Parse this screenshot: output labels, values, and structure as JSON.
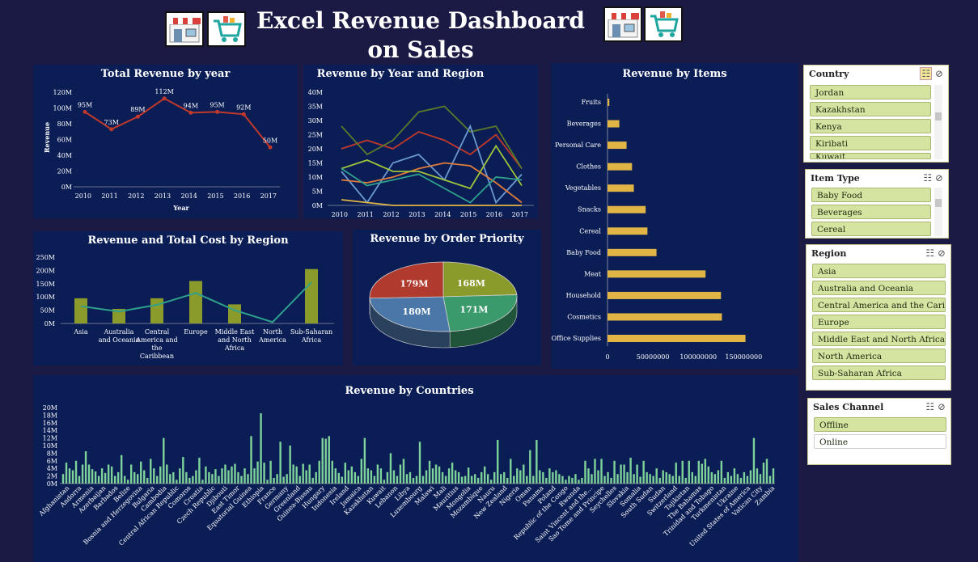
{
  "header": {
    "title": "Excel Revenue Dashboard on Sales"
  },
  "colors": {
    "background": "#1b1a45",
    "panel": "#0b1d55",
    "line_red": "#c0392b",
    "bar_olive": "#8a9a2b",
    "bar_gold": "#e0b545",
    "bar_green": "#7ed39a",
    "slicer_item": "#d5e4a0"
  },
  "icons": [
    "shop-icon",
    "cart-icon",
    "multi-select-icon",
    "clear-filter-icon"
  ],
  "charts": {
    "total_revenue_year": {
      "title": "Total Revenue by year",
      "ylabel": "Revenue",
      "xlabel": "Year"
    },
    "year_region": {
      "title": "Revenue by Year and Region"
    },
    "region_cost": {
      "title": "Revenue and Total Cost by Region"
    },
    "order_priority": {
      "title": "Revenue by Order Priority"
    },
    "items": {
      "title": "Revenue by Items"
    },
    "countries": {
      "title": "Revenue by Countries"
    }
  },
  "chart_data": [
    {
      "id": "total_revenue_year",
      "type": "line",
      "title": "Total Revenue by year",
      "xlabel": "Year",
      "ylabel": "Revenue",
      "categories": [
        "2010",
        "2011",
        "2012",
        "2013",
        "2014",
        "2015",
        "2016",
        "2017"
      ],
      "values": [
        95,
        73,
        89,
        112,
        94,
        95,
        92,
        50
      ],
      "data_labels": [
        "95M",
        "73M",
        "89M",
        "112M",
        "94M",
        "95M",
        "92M",
        "50M"
      ],
      "y_ticks": [
        "0M",
        "20M",
        "40M",
        "60M",
        "80M",
        "100M",
        "120M"
      ],
      "ylim": [
        0,
        120
      ]
    },
    {
      "id": "year_region",
      "type": "line",
      "title": "Revenue by Year and Region",
      "categories": [
        "2010",
        "2011",
        "2012",
        "2013",
        "2014",
        "2015",
        "2016",
        "2017"
      ],
      "y_ticks": [
        "0M",
        "5M",
        "10M",
        "15M",
        "20M",
        "25M",
        "30M",
        "35M",
        "40M"
      ],
      "ylim": [
        0,
        40
      ],
      "series": [
        {
          "color": "#c0392b",
          "values": [
            20,
            23,
            20,
            26,
            23,
            18,
            25,
            13
          ]
        },
        {
          "color": "#5a7a2a",
          "values": [
            28,
            18,
            23,
            33,
            35,
            26,
            28,
            13
          ]
        },
        {
          "color": "#6a9ad0",
          "values": [
            12,
            1,
            15,
            18,
            9,
            28,
            1,
            11
          ]
        },
        {
          "color": "#e07b39",
          "values": [
            9,
            8,
            10,
            13,
            15,
            14,
            8,
            1
          ]
        },
        {
          "color": "#9dc33b",
          "values": [
            13,
            16,
            12,
            12,
            9,
            6,
            21,
            7
          ]
        },
        {
          "color": "#2fa08c",
          "values": [
            13,
            7,
            9,
            11,
            6,
            1,
            10,
            9
          ]
        },
        {
          "color": "#e0b545",
          "values": [
            2,
            1,
            0,
            0,
            0,
            0,
            0,
            0
          ]
        }
      ]
    },
    {
      "id": "region_cost",
      "type": "bar",
      "title": "Revenue and Total Cost by Region",
      "categories": [
        "Asia",
        "Australia and Oceania",
        "Central America and the Caribbean",
        "Europe",
        "Middle East and North Africa",
        "North America",
        "Sub-Saharan Africa"
      ],
      "y_ticks": [
        "0M",
        "50M",
        "100M",
        "150M",
        "200M",
        "250M"
      ],
      "ylim": [
        0,
        250
      ],
      "series": [
        {
          "values": [
            95,
            55,
            95,
            160,
            72,
            0,
            205
          ],
          "color": "#8a9a2b"
        },
        {
          "values": [
            65,
            45,
            70,
            115,
            50,
            5,
            155
          ],
          "color": "#2fa08c"
        }
      ]
    },
    {
      "id": "order_priority",
      "type": "pie",
      "title": "Revenue by Order Priority",
      "values": [
        168,
        171,
        180,
        179
      ],
      "labels": [
        "168M",
        "171M",
        "180M",
        "179M"
      ],
      "colors": [
        "#8a9a2b",
        "#3a9a6b",
        "#4a76a8",
        "#b03a2e"
      ]
    },
    {
      "id": "items",
      "type": "bar",
      "title": "Revenue by Items",
      "categories": [
        "Fruits",
        "Beverages",
        "Personal Care",
        "Clothes",
        "Vegetables",
        "Snacks",
        "Cereal",
        "Baby Food",
        "Meat",
        "Household",
        "Cosmetics",
        "Office Supplies"
      ],
      "values": [
        2000000,
        13000000,
        21000000,
        27000000,
        29000000,
        42000000,
        44000000,
        54000000,
        108000000,
        125000000,
        126000000,
        152000000
      ],
      "x_ticks": [
        "0",
        "50000000",
        "100000000",
        "150000000"
      ],
      "xlim": [
        0,
        180000000
      ]
    },
    {
      "id": "countries",
      "type": "bar",
      "title": "Revenue by Countries",
      "y_ticks": [
        "0M",
        "2M",
        "4M",
        "6M",
        "8M",
        "10M",
        "12M",
        "14M",
        "16M",
        "18M",
        "20M"
      ],
      "ylim": [
        0,
        20
      ],
      "label_names": [
        "Afghanistan",
        "Andorra",
        "Armenia",
        "Azerbaijan",
        "Barbados",
        "Belize",
        "Bosnia and Herzegovina",
        "Bulgaria",
        "Cambodia",
        "Central African Republic",
        "Comoros",
        "Croatia",
        "Czech Republic",
        "Djibouti",
        "East Timor",
        "Equatorial Guinea",
        "Ethiopia",
        "France",
        "Germany",
        "Greenland",
        "Guinea-Bissau",
        "Hungary",
        "Indonesia",
        "Ireland",
        "Jamaica",
        "Kazakhstan",
        "Kuwait",
        "Lebanon",
        "Libya",
        "Luxembourg",
        "Malawi",
        "Mali",
        "Mauritius",
        "Mongolia",
        "Mozambique",
        "Nauru",
        "New Zealand",
        "Nigeria",
        "Oman",
        "Panama",
        "Poland",
        "Republic of the Congo",
        "Rwanda",
        "Saint Vincent and the...",
        "Sao Tome and Principe",
        "Seychelles",
        "Slovakia",
        "Somalia",
        "South Sudan",
        "Sudan",
        "Switzerland",
        "Tajikistan",
        "The Bahamas",
        "Trinidad and Tobago",
        "Turkmenistan",
        "Ukraine",
        "United States of America",
        "Vatican City",
        "Zambia"
      ],
      "values": [
        2.5,
        5.5,
        4,
        3.5,
        6,
        2,
        5,
        8.5,
        5,
        3.8,
        3.2,
        2,
        4,
        2.8,
        5,
        4.5,
        2,
        3,
        7.5,
        2,
        1,
        5,
        3,
        2.5,
        5.8,
        3.5,
        1.5,
        6.5,
        4,
        2,
        4.5,
        12,
        5,
        2.5,
        3,
        1,
        4,
        7,
        3,
        1.5,
        2,
        3.5,
        6.8,
        1,
        4.5,
        3,
        2.5,
        3.8,
        2,
        4,
        5,
        3.5,
        4.5,
        5.2,
        3,
        2,
        4,
        2.5,
        12.5,
        4,
        5.8,
        18.5,
        5.5,
        1,
        6,
        1.5,
        2.5,
        11,
        1.8,
        2.5,
        10,
        5,
        4.5,
        2,
        5.2,
        3.5,
        5,
        1.5,
        3,
        6,
        12,
        11.8,
        12.5,
        6,
        4,
        2.8,
        1.8,
        5.5,
        3.5,
        4.5,
        3,
        2,
        6.5,
        12,
        4,
        3.5,
        2,
        5,
        4,
        1,
        3,
        8,
        3.5,
        2,
        5,
        6.5,
        2.5,
        3,
        1.5,
        2,
        11,
        2,
        3.5,
        6,
        4,
        5,
        4.5,
        3,
        2,
        4,
        5.5,
        3.5,
        3,
        1.8,
        2,
        4.2,
        2,
        2.5,
        1.5,
        3,
        4.5,
        2.5,
        1,
        3,
        11.5,
        2.5,
        3,
        1.5,
        6.5,
        2,
        4,
        3.5,
        5,
        2,
        8.8,
        2,
        11.5,
        3.5,
        3,
        1.5,
        4,
        3,
        3.5,
        2.5,
        2,
        1,
        2,
        1.5,
        2.5,
        1,
        1.5,
        6,
        4,
        2.5,
        6.5,
        3.5,
        6.5,
        2,
        3,
        1.5,
        6,
        2.5,
        5,
        5,
        3,
        6.8,
        2.5,
        5,
        1.8,
        6,
        3,
        2.5,
        2,
        4,
        1.5,
        3.5,
        3,
        2.5,
        2,
        5.5,
        2,
        6,
        1.5,
        6,
        3,
        2,
        6,
        5.2,
        6.5,
        4.5,
        3,
        2.5,
        3.5,
        6,
        1.5,
        3,
        2,
        4,
        2.5,
        1.5,
        3,
        2,
        3.5,
        12,
        4,
        2.5,
        5.5,
        6.5,
        2,
        4
      ]
    }
  ],
  "slicers": {
    "country": {
      "title": "Country",
      "items": [
        "Jordan",
        "Kazakhstan",
        "Kenya",
        "Kiribati",
        "Kuwait"
      ]
    },
    "item_type": {
      "title": "Item Type",
      "items": [
        "Baby Food",
        "Beverages",
        "Cereal"
      ]
    },
    "region": {
      "title": "Region",
      "items": [
        "Asia",
        "Australia and Oceania",
        "Central America and the Caribbe...",
        "Europe",
        "Middle East and North Africa",
        "North America",
        "Sub-Saharan Africa"
      ]
    },
    "sales_channel": {
      "title": "Sales Channel",
      "items": [
        "Offline",
        "Online"
      ]
    }
  }
}
